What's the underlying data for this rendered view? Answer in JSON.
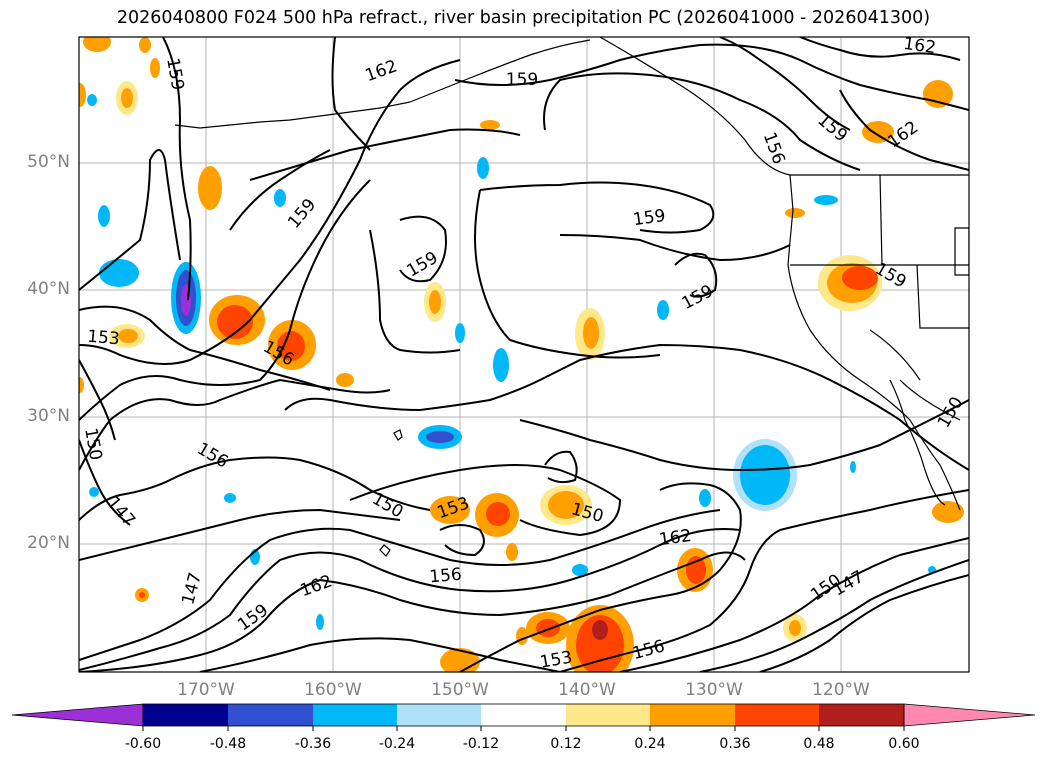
{
  "title": "2026040800 F024 500 hPa refract., river basin precipitation PC (2026041000 - 2026041300)",
  "lat_labels": [
    "50°N",
    "40°N",
    "30°N",
    "20°N"
  ],
  "lon_labels": [
    "170°W",
    "160°W",
    "150°W",
    "140°W",
    "130°W",
    "120°W"
  ],
  "contour_labels": [
    "162",
    "159",
    "159",
    "162",
    "159",
    "156",
    "159",
    "159",
    "159",
    "153",
    "156",
    "159",
    "150",
    "147",
    "150",
    "153",
    "150",
    "156",
    "162",
    "147",
    "162",
    "159",
    "153",
    "156",
    "150",
    "147",
    "162",
    "156",
    "159",
    "150"
  ],
  "colorbar": {
    "ticks": [
      "-0.60",
      "-0.48",
      "-0.36",
      "-0.24",
      "-0.12",
      "0.12",
      "0.24",
      "0.36",
      "0.48",
      "0.60"
    ],
    "colors": [
      "#9b30d9",
      "#000090",
      "#3050d0",
      "#00b8f8",
      "#b0e0fa",
      "#ffffff",
      "#ffe88a",
      "#ffa000",
      "#ff4400",
      "#b01e1e",
      "#ff88b0"
    ]
  }
}
